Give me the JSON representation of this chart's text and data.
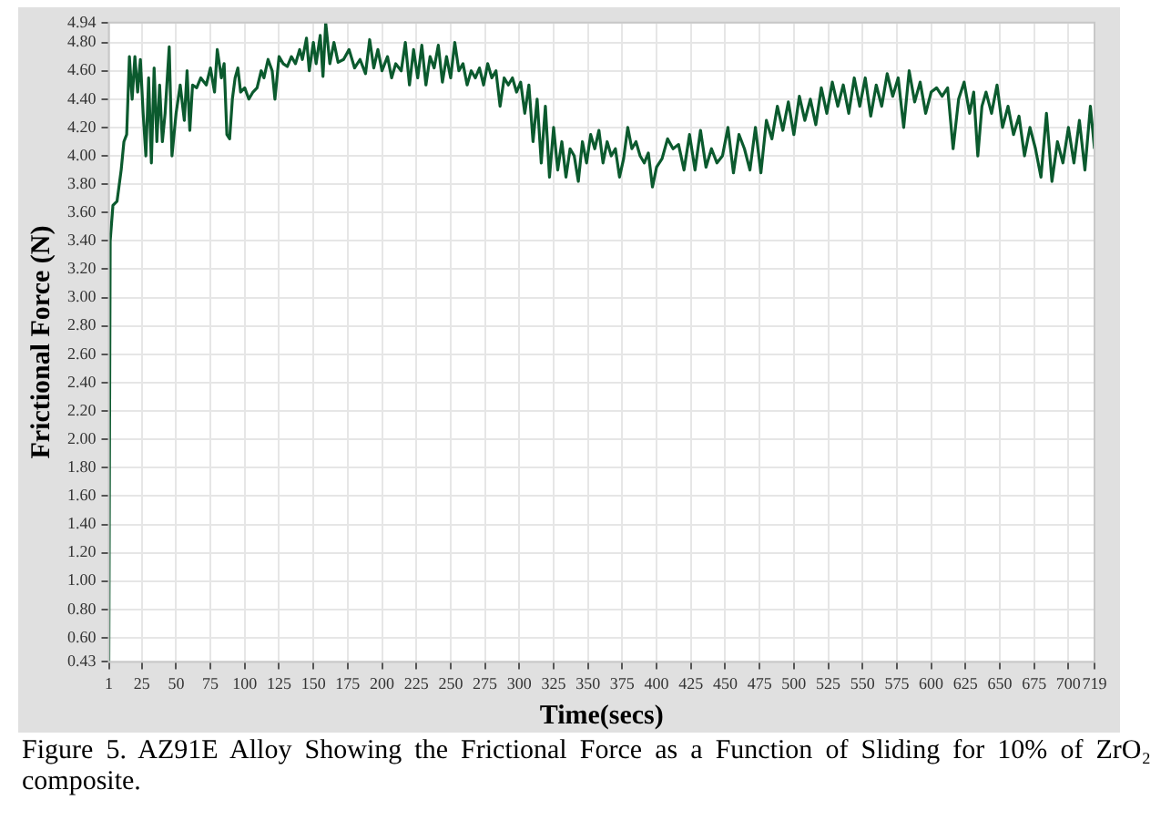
{
  "chart_data": {
    "type": "line",
    "xlabel": "Time(secs)",
    "ylabel": "Frictional Force (N)",
    "annotations": [
      "Figure 5. AZ91E Alloy Showing the Frictional Force as a Function of Sliding for 10% of ZrO₂ composite."
    ],
    "xlim": [
      1,
      719
    ],
    "ylim": [
      0.43,
      4.94
    ],
    "xticks": [
      1,
      25,
      50,
      75,
      100,
      125,
      150,
      175,
      200,
      225,
      250,
      275,
      300,
      325,
      350,
      375,
      400,
      425,
      450,
      475,
      500,
      525,
      550,
      575,
      600,
      625,
      650,
      675,
      700,
      719
    ],
    "yticks": [
      0.43,
      {
        "value": 0.6,
        "label": "0.60"
      },
      {
        "value": 0.8,
        "label": "0.80"
      },
      {
        "value": 1,
        "label": "1.00"
      },
      {
        "value": 1.2,
        "label": "1.20"
      },
      {
        "value": 1.4,
        "label": "1.40"
      },
      {
        "value": 1.6,
        "label": "1.60"
      },
      {
        "value": 1.8,
        "label": "1.80"
      },
      {
        "value": 2,
        "label": "2.00"
      },
      {
        "value": 2.2,
        "label": "2.20"
      },
      {
        "value": 2.4,
        "label": "2.40"
      },
      {
        "value": 2.6,
        "label": "2.60"
      },
      {
        "value": 2.8,
        "label": "2.80"
      },
      {
        "value": 3,
        "label": "3.00"
      },
      {
        "value": 3.2,
        "label": "3.20"
      },
      {
        "value": 3.4,
        "label": "3.40"
      },
      {
        "value": 3.6,
        "label": "3.60"
      },
      {
        "value": 3.8,
        "label": "3.80"
      },
      {
        "value": 4,
        "label": "4.00"
      },
      {
        "value": 4.2,
        "label": "4.20"
      },
      {
        "value": 4.4,
        "label": "4.40"
      },
      {
        "value": 4.6,
        "label": "4.60"
      },
      {
        "value": 4.8,
        "label": "4.80"
      },
      4.94
    ],
    "grid": true,
    "legend": false,
    "marker": "none",
    "line_style": "solid",
    "x": [
      1,
      2,
      4,
      7,
      10,
      12,
      14,
      16,
      18,
      20,
      22,
      24,
      26,
      28,
      30,
      32,
      34,
      36,
      38,
      40,
      42,
      45,
      47,
      50,
      53,
      56,
      58,
      60,
      62,
      65,
      68,
      72,
      75,
      78,
      80,
      83,
      85,
      87,
      89,
      91,
      93,
      95,
      97,
      100,
      103,
      106,
      109,
      112,
      114,
      117,
      120,
      122,
      125,
      128,
      131,
      134,
      137,
      140,
      142,
      145,
      147,
      150,
      152,
      155,
      157,
      159,
      162,
      165,
      168,
      172,
      176,
      180,
      184,
      188,
      191,
      194,
      197,
      200,
      204,
      207,
      210,
      214,
      217,
      220,
      223,
      226,
      229,
      232,
      235,
      238,
      241,
      244,
      247,
      250,
      253,
      256,
      259,
      262,
      265,
      268,
      271,
      274,
      277,
      280,
      283,
      286,
      289,
      292,
      295,
      298,
      301,
      304,
      307,
      310,
      313,
      316,
      319,
      322,
      325,
      328,
      331,
      334,
      337,
      340,
      343,
      346,
      349,
      352,
      355,
      358,
      361,
      364,
      367,
      370,
      373,
      376,
      379,
      382,
      385,
      388,
      391,
      394,
      397,
      400,
      404,
      408,
      412,
      416,
      420,
      424,
      428,
      432,
      436,
      440,
      444,
      448,
      452,
      456,
      460,
      464,
      468,
      472,
      476,
      480,
      484,
      488,
      492,
      496,
      500,
      504,
      508,
      512,
      516,
      520,
      524,
      528,
      532,
      536,
      540,
      544,
      548,
      552,
      556,
      560,
      564,
      568,
      572,
      576,
      580,
      584,
      588,
      592,
      596,
      600,
      604,
      608,
      612,
      616,
      620,
      624,
      628,
      631,
      634,
      637,
      640,
      644,
      648,
      652,
      656,
      660,
      664,
      668,
      672,
      676,
      680,
      684,
      688,
      692,
      696,
      700,
      704,
      708,
      712,
      716,
      719
    ],
    "series": [
      {
        "color": "#0b5a2e",
        "values": [
          0.43,
          3.4,
          3.65,
          3.68,
          3.9,
          4.1,
          4.15,
          4.7,
          4.4,
          4.7,
          4.45,
          4.68,
          4.3,
          4.0,
          4.55,
          3.95,
          4.62,
          4.1,
          4.5,
          4.1,
          4.3,
          4.77,
          4.0,
          4.3,
          4.5,
          4.25,
          4.6,
          4.18,
          4.5,
          4.48,
          4.55,
          4.5,
          4.62,
          4.45,
          4.75,
          4.55,
          4.65,
          4.15,
          4.12,
          4.4,
          4.55,
          4.62,
          4.45,
          4.48,
          4.4,
          4.45,
          4.48,
          4.6,
          4.55,
          4.68,
          4.6,
          4.4,
          4.7,
          4.65,
          4.63,
          4.7,
          4.65,
          4.75,
          4.68,
          4.83,
          4.6,
          4.8,
          4.65,
          4.85,
          4.56,
          4.94,
          4.65,
          4.8,
          4.66,
          4.68,
          4.75,
          4.62,
          4.68,
          4.58,
          4.82,
          4.62,
          4.75,
          4.6,
          4.7,
          4.55,
          4.65,
          4.6,
          4.8,
          4.5,
          4.75,
          4.55,
          4.78,
          4.5,
          4.7,
          4.62,
          4.78,
          4.52,
          4.7,
          4.55,
          4.8,
          4.6,
          4.65,
          4.5,
          4.6,
          4.55,
          4.62,
          4.5,
          4.65,
          4.55,
          4.6,
          4.35,
          4.55,
          4.5,
          4.55,
          4.45,
          4.52,
          4.3,
          4.5,
          4.1,
          4.4,
          3.95,
          4.35,
          3.85,
          4.2,
          3.9,
          4.1,
          3.85,
          4.05,
          4.0,
          3.82,
          4.1,
          3.95,
          4.15,
          4.05,
          4.18,
          3.95,
          4.1,
          4.0,
          4.05,
          3.85,
          3.98,
          4.2,
          4.05,
          4.1,
          4.0,
          3.95,
          4.02,
          3.78,
          3.92,
          3.98,
          4.12,
          4.05,
          4.08,
          3.9,
          4.15,
          3.9,
          4.18,
          3.92,
          4.05,
          3.95,
          4.0,
          4.2,
          3.88,
          4.15,
          4.05,
          3.9,
          4.2,
          3.88,
          4.25,
          4.12,
          4.35,
          4.18,
          4.38,
          4.15,
          4.42,
          4.25,
          4.4,
          4.22,
          4.48,
          4.3,
          4.52,
          4.35,
          4.5,
          4.3,
          4.55,
          4.35,
          4.55,
          4.28,
          4.5,
          4.35,
          4.58,
          4.42,
          4.55,
          4.2,
          4.6,
          4.38,
          4.52,
          4.3,
          4.45,
          4.48,
          4.42,
          4.48,
          4.05,
          4.4,
          4.52,
          4.3,
          4.45,
          4.0,
          4.35,
          4.45,
          4.3,
          4.5,
          4.2,
          4.35,
          4.15,
          4.28,
          4.0,
          4.2,
          4.05,
          3.85,
          4.3,
          3.82,
          4.1,
          3.95,
          4.2,
          3.95,
          4.25,
          3.9,
          4.35,
          4.05
        ]
      }
    ]
  }
}
